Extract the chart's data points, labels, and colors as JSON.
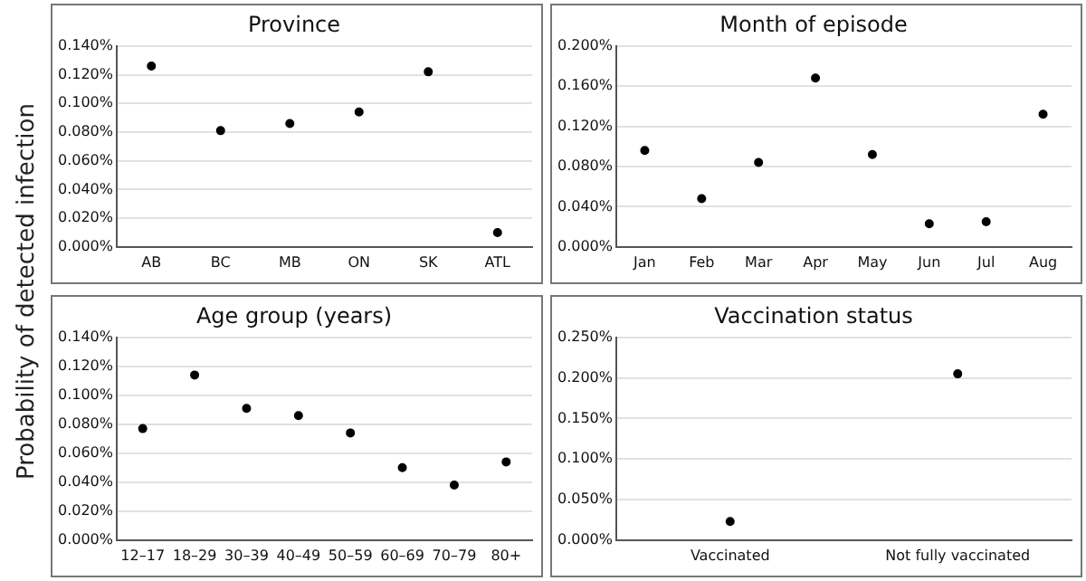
{
  "chart_data": [
    {
      "type": "scatter",
      "title": "Province",
      "ylabel": "Probability of detected infection",
      "categories": [
        "AB",
        "BC",
        "MB",
        "ON",
        "SK",
        "ATL"
      ],
      "values": [
        0.126,
        0.081,
        0.086,
        0.094,
        0.122,
        0.01
      ],
      "color": "#000000",
      "marker": "circle",
      "grid": "y",
      "legend": false,
      "ylim": [
        0,
        0.14
      ],
      "yticks": [
        {
          "value": 0,
          "label": "0.000%"
        },
        {
          "value": 0.02,
          "label": "0.020%"
        },
        {
          "value": 0.04,
          "label": "0.040%"
        },
        {
          "value": 0.06,
          "label": "0.060%"
        },
        {
          "value": 0.08,
          "label": "0.080%"
        },
        {
          "value": 0.1,
          "label": "0.100%"
        },
        {
          "value": 0.12,
          "label": "0.120%"
        },
        {
          "value": 0.14,
          "label": "0.140%"
        }
      ]
    },
    {
      "type": "scatter",
      "title": "Month of episode",
      "categories": [
        "Jan",
        "Feb",
        "Mar",
        "Apr",
        "May",
        "Jun",
        "Jul",
        "Aug"
      ],
      "values": [
        0.096,
        0.048,
        0.084,
        0.168,
        0.092,
        0.023,
        0.025,
        0.132
      ],
      "color": "#000000",
      "marker": "circle",
      "grid": "y",
      "legend": false,
      "ylim": [
        0,
        0.2
      ],
      "yticks": [
        {
          "value": 0,
          "label": "0.000%"
        },
        {
          "value": 0.04,
          "label": "0.040%"
        },
        {
          "value": 0.08,
          "label": "0.080%"
        },
        {
          "value": 0.12,
          "label": "0.120%"
        },
        {
          "value": 0.16,
          "label": "0.160%"
        },
        {
          "value": 0.2,
          "label": "0.200%"
        }
      ]
    },
    {
      "type": "scatter",
      "title": "Age group (years)",
      "categories": [
        "12–17",
        "18–29",
        "30–39",
        "40–49",
        "50–59",
        "60–69",
        "70–79",
        "80+"
      ],
      "values": [
        0.077,
        0.114,
        0.091,
        0.086,
        0.074,
        0.05,
        0.038,
        0.054
      ],
      "color": "#000000",
      "marker": "circle",
      "grid": "y",
      "legend": false,
      "ylim": [
        0,
        0.14
      ],
      "yticks": [
        {
          "value": 0,
          "label": "0.000%"
        },
        {
          "value": 0.02,
          "label": "0.020%"
        },
        {
          "value": 0.04,
          "label": "0.040%"
        },
        {
          "value": 0.06,
          "label": "0.060%"
        },
        {
          "value": 0.08,
          "label": "0.080%"
        },
        {
          "value": 0.1,
          "label": "0.100%"
        },
        {
          "value": 0.12,
          "label": "0.120%"
        },
        {
          "value": 0.14,
          "label": "0.140%"
        }
      ]
    },
    {
      "type": "scatter",
      "title": "Vaccination status",
      "categories": [
        "Vaccinated",
        "Not fully vaccinated"
      ],
      "values": [
        0.023,
        0.205
      ],
      "color": "#000000",
      "marker": "circle",
      "grid": "y",
      "legend": false,
      "ylim": [
        0,
        0.25
      ],
      "yticks": [
        {
          "value": 0,
          "label": "0.000%"
        },
        {
          "value": 0.05,
          "label": "0.050%"
        },
        {
          "value": 0.1,
          "label": "0.100%"
        },
        {
          "value": 0.15,
          "label": "0.150%"
        },
        {
          "value": 0.2,
          "label": "0.200%"
        },
        {
          "value": 0.25,
          "label": "0.250%"
        }
      ]
    }
  ]
}
